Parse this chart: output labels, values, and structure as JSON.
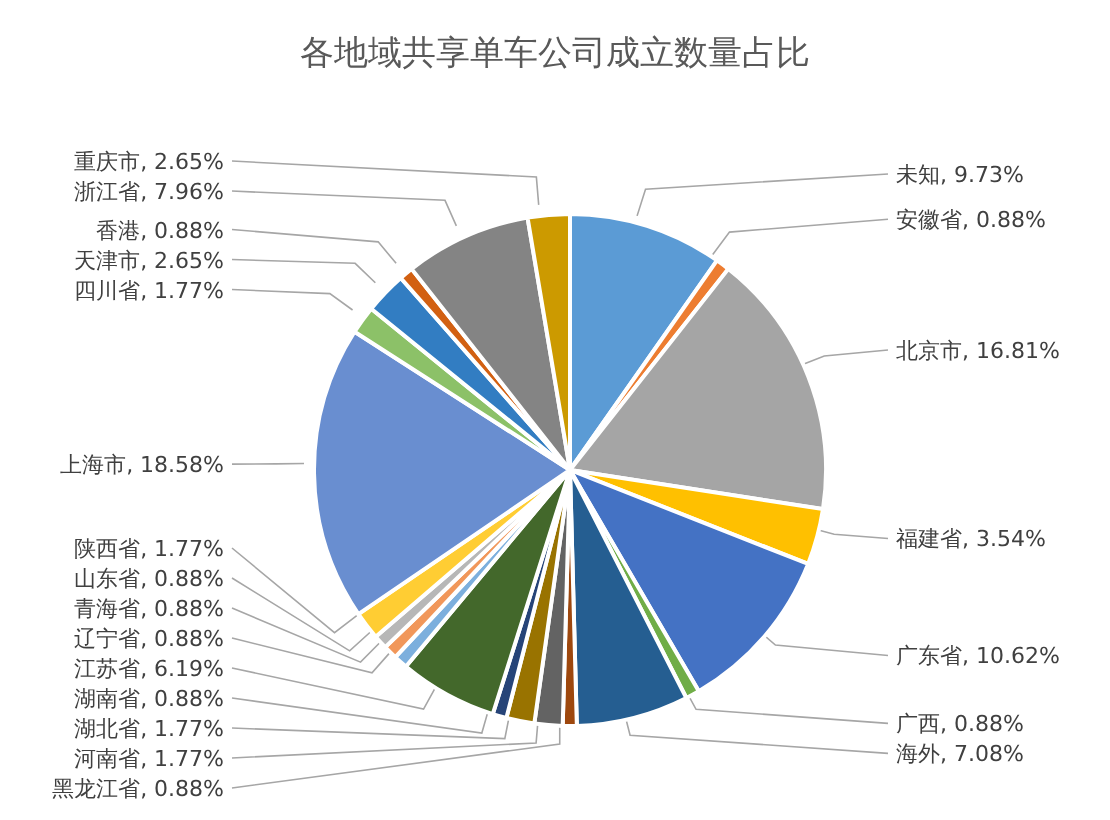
{
  "chart_data": {
    "type": "pie",
    "title": "各地域共享单车公司成立数量占比",
    "categories": [
      "未知",
      "安徽省",
      "北京市",
      "福建省",
      "广东省",
      "广西",
      "海外",
      "黑龙江省",
      "河南省",
      "湖北省",
      "湖南省",
      "江苏省",
      "辽宁省",
      "青海省",
      "山东省",
      "陕西省",
      "上海市",
      "四川省",
      "天津市",
      "香港",
      "浙江省",
      "重庆市"
    ],
    "values": [
      9.73,
      0.88,
      16.81,
      3.54,
      10.62,
      0.88,
      7.08,
      0.88,
      1.77,
      1.77,
      0.88,
      6.19,
      0.88,
      0.88,
      0.88,
      1.77,
      18.58,
      1.77,
      2.65,
      0.88,
      7.96,
      2.65
    ],
    "value_labels": [
      "9.73%",
      "0.88%",
      "16.81%",
      "3.54%",
      "10.62%",
      "0.88%",
      "7.08%",
      "0.88%",
      "1.77%",
      "1.77%",
      "0.88%",
      "6.19%",
      "0.88%",
      "0.88%",
      "0.88%",
      "1.77%",
      "18.58%",
      "1.77%",
      "2.65%",
      "0.88%",
      "7.96%",
      "2.65%"
    ],
    "colors": [
      "#5b9bd5",
      "#ed7d31",
      "#a5a5a5",
      "#ffc000",
      "#4472c4",
      "#70ad47",
      "#255e91",
      "#9e480e",
      "#636363",
      "#997300",
      "#264478",
      "#43682b",
      "#7cafdd",
      "#f1975a",
      "#b7b7b7",
      "#ffcd33",
      "#698ed0",
      "#8cc168",
      "#327dc2",
      "#d26012",
      "#848484",
      "#cc9a00"
    ],
    "data_labels": true,
    "legend": false
  }
}
